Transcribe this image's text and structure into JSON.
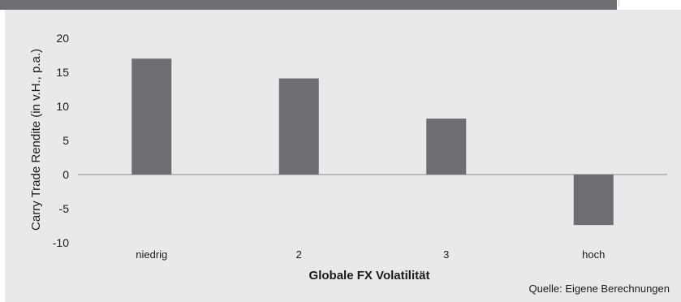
{
  "chart_data": {
    "type": "bar",
    "categories": [
      "niedrig",
      "2",
      "3",
      "hoch"
    ],
    "values": [
      17.0,
      14.1,
      8.2,
      -7.4
    ],
    "xlabel": "Globale FX Volatilität",
    "ylabel": "Carry Trade Rendite (in v.H., p.a.)",
    "ylim": [
      -10,
      20
    ],
    "yticks": [
      20,
      15,
      10,
      5,
      0,
      -5,
      -10
    ],
    "grid": false,
    "legend": "none",
    "bar_color": "#6d6e71",
    "background_color": "#e7e9eb",
    "source": "Quelle: Eigene Berechnungen"
  }
}
